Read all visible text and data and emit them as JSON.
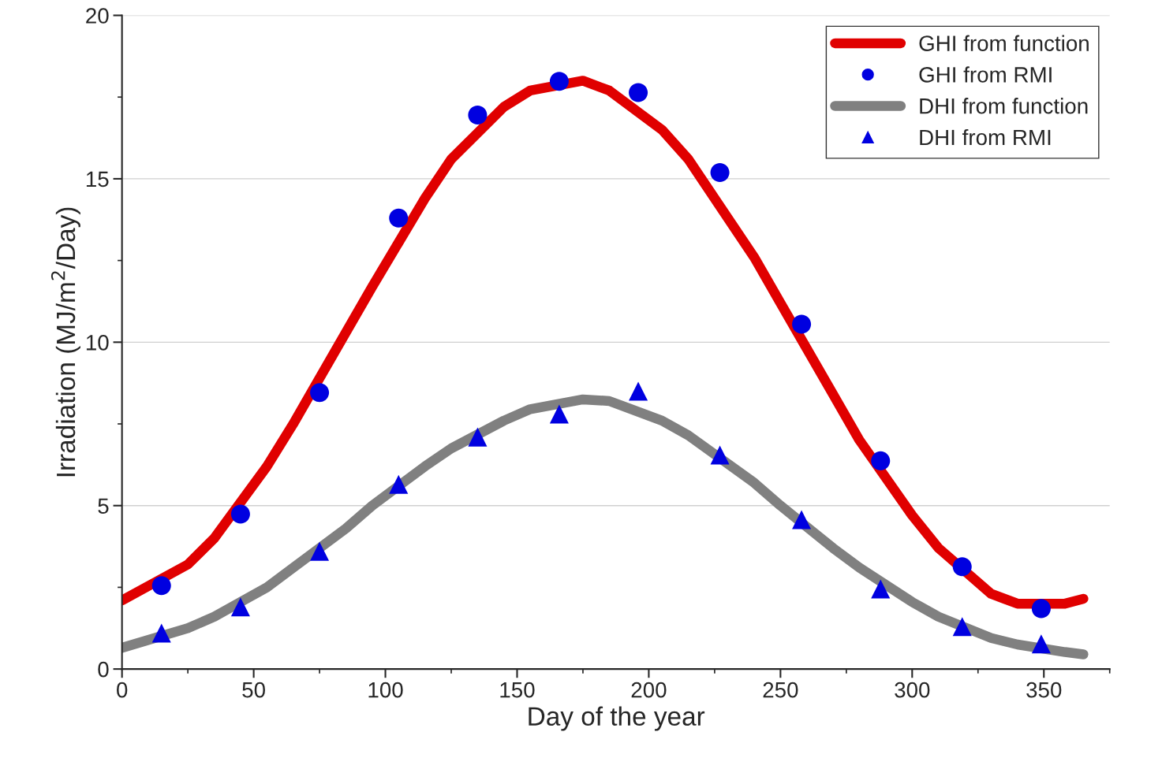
{
  "chart_data": {
    "type": "line",
    "xlabel": "Day of the year",
    "ylabel": "Irradiation (MJ/m$^{2}$/Day)",
    "xlim": [
      0,
      375
    ],
    "xticks": [
      0,
      50,
      100,
      150,
      200,
      250,
      300,
      350
    ],
    "ylim": [
      0,
      20
    ],
    "yticks": [
      0,
      5,
      10,
      15,
      20
    ],
    "grid": "y",
    "legend": "top right",
    "series": [
      {
        "name": "GHI from function",
        "type": "line",
        "color": "#e00000",
        "line_style": "solid",
        "x": [
          0,
          25,
          35,
          55,
          65,
          85,
          95,
          115,
          125,
          145,
          155,
          175,
          185,
          205,
          215,
          240,
          250,
          270,
          280,
          300,
          310,
          330,
          340,
          358,
          365
        ],
        "values": [
          2.1,
          3.2,
          4.0,
          6.2,
          7.5,
          10.3,
          11.7,
          14.4,
          15.6,
          17.2,
          17.7,
          18.0,
          17.7,
          16.5,
          15.6,
          12.6,
          11.2,
          8.4,
          7.0,
          4.7,
          3.7,
          2.3,
          2.0,
          2.0,
          2.15
        ]
      },
      {
        "name": "GHI from RMI",
        "type": "scatter",
        "marker": "circle",
        "color": "#0000e0",
        "x": [
          15,
          45,
          75,
          105,
          135,
          166,
          196,
          227,
          258,
          288,
          319,
          349
        ],
        "values": [
          2.55,
          4.74,
          8.46,
          13.8,
          16.95,
          17.98,
          17.64,
          15.19,
          10.55,
          6.37,
          3.13,
          1.85
        ]
      },
      {
        "name": "DHI from function",
        "type": "line",
        "color": "#808080",
        "line_style": "solid",
        "x": [
          0,
          25,
          35,
          55,
          65,
          85,
          95,
          115,
          125,
          145,
          155,
          175,
          185,
          205,
          215,
          240,
          250,
          270,
          280,
          300,
          310,
          330,
          340,
          358,
          365
        ],
        "values": [
          0.65,
          1.25,
          1.6,
          2.5,
          3.1,
          4.3,
          5.0,
          6.2,
          6.75,
          7.6,
          7.95,
          8.25,
          8.2,
          7.6,
          7.15,
          5.7,
          5.0,
          3.7,
          3.1,
          2.05,
          1.6,
          0.95,
          0.75,
          0.52,
          0.45
        ]
      },
      {
        "name": "DHI from RMI",
        "type": "scatter",
        "marker": "triangle",
        "color": "#0000e0",
        "x": [
          15,
          45,
          75,
          105,
          135,
          166,
          196,
          227,
          258,
          288,
          319,
          349
        ],
        "values": [
          1.1,
          1.9,
          3.6,
          5.65,
          7.1,
          7.8,
          8.5,
          6.55,
          4.57,
          2.45,
          1.3,
          0.77
        ]
      }
    ]
  }
}
